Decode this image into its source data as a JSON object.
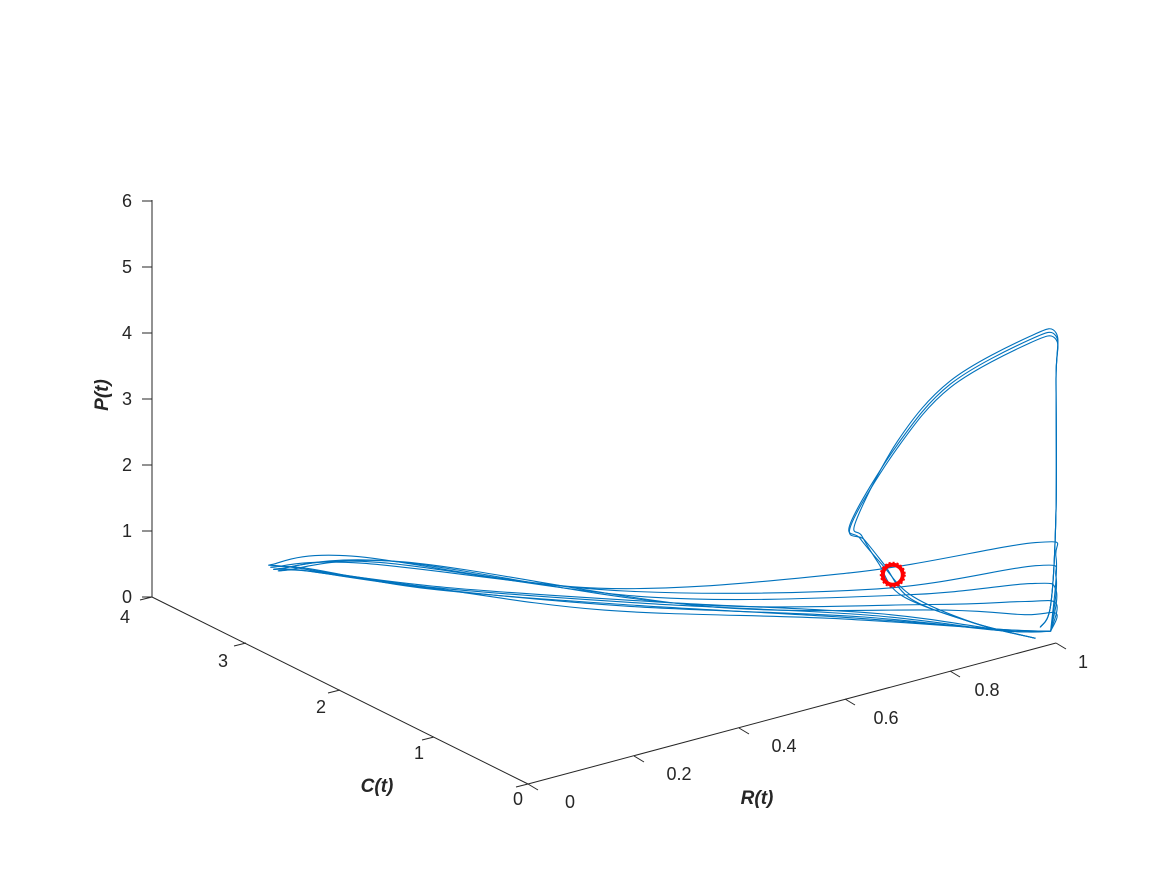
{
  "chart_data": {
    "type": "line",
    "dimension": "3d",
    "title": "",
    "xlabel": "R(t)",
    "ylabel": "C(t)",
    "zlabel": "P(t)",
    "xlim": [
      0,
      1
    ],
    "ylim": [
      0,
      4
    ],
    "zlim": [
      0,
      6
    ],
    "xticks": [
      "0",
      "0.2",
      "0.4",
      "0.6",
      "0.8",
      "1"
    ],
    "yticks": [
      "0",
      "1",
      "2",
      "3",
      "4"
    ],
    "zticks": [
      "0",
      "1",
      "2",
      "3",
      "4",
      "5",
      "6"
    ],
    "grid": false,
    "colors": {
      "trajectory": "#0072BD",
      "marker": "#FF0000"
    },
    "marker": {
      "shape": "circle",
      "R": 0.78,
      "C": 0.5,
      "P": 1.15
    },
    "series": [
      {
        "description_free": true,
        "loops": [
          [
            [
              0.97,
              0.0,
              0.3
            ],
            [
              0.99,
              0.0,
              0.6
            ],
            [
              1.0,
              0.0,
              2.0
            ],
            [
              1.0,
              0.0,
              4.0
            ],
            [
              1.0,
              0.0,
              4.7
            ],
            [
              0.95,
              0.0,
              4.75
            ],
            [
              0.8,
              0.0,
              4.4
            ],
            [
              0.7,
              0.0,
              3.7
            ],
            [
              0.63,
              0.05,
              2.6
            ],
            [
              0.65,
              0.1,
              2.3
            ],
            [
              0.7,
              0.2,
              1.7
            ],
            [
              0.78,
              0.4,
              0.9
            ],
            [
              0.9,
              0.3,
              0.3
            ],
            [
              0.97,
              0.05,
              0.1
            ]
          ],
          [
            [
              0.97,
              0.0,
              0.3
            ],
            [
              0.99,
              0.0,
              0.6
            ],
            [
              1.0,
              0.0,
              2.0
            ],
            [
              1.0,
              0.0,
              4.0
            ],
            [
              1.0,
              0.0,
              4.65
            ],
            [
              0.95,
              0.0,
              4.7
            ],
            [
              0.8,
              0.0,
              4.35
            ],
            [
              0.7,
              0.0,
              3.65
            ],
            [
              0.62,
              0.05,
              2.6
            ],
            [
              0.65,
              0.12,
              2.25
            ],
            [
              0.71,
              0.22,
              1.65
            ],
            [
              0.8,
              0.4,
              0.85
            ],
            [
              0.9,
              0.3,
              0.3
            ],
            [
              0.97,
              0.05,
              0.1
            ]
          ],
          [
            [
              0.97,
              0.0,
              0.3
            ],
            [
              0.99,
              0.0,
              0.6
            ],
            [
              1.0,
              0.0,
              2.0
            ],
            [
              1.0,
              0.0,
              4.0
            ],
            [
              1.0,
              0.0,
              4.6
            ],
            [
              0.95,
              0.0,
              4.65
            ],
            [
              0.8,
              0.0,
              4.3
            ],
            [
              0.7,
              0.0,
              3.6
            ],
            [
              0.62,
              0.05,
              2.55
            ],
            [
              0.66,
              0.13,
              2.2
            ],
            [
              0.72,
              0.25,
              1.6
            ],
            [
              0.8,
              0.42,
              0.8
            ],
            [
              0.9,
              0.3,
              0.3
            ],
            [
              0.97,
              0.05,
              0.1
            ]
          ],
          [
            [
              0.99,
              0.0,
              0.2
            ],
            [
              1.0,
              0.0,
              1.3
            ],
            [
              0.97,
              0.05,
              1.55
            ],
            [
              0.7,
              0.5,
              1.35
            ],
            [
              0.4,
              1.5,
              1.05
            ],
            [
              0.2,
              3.0,
              0.9
            ],
            [
              0.14,
              3.5,
              0.55
            ],
            [
              0.2,
              3.6,
              0.3
            ],
            [
              0.35,
              3.0,
              0.1
            ],
            [
              0.5,
              2.0,
              0.15
            ],
            [
              0.75,
              1.0,
              0.2
            ],
            [
              0.95,
              0.3,
              0.1
            ],
            [
              0.99,
              0.0,
              0.2
            ]
          ],
          [
            [
              0.99,
              0.0,
              0.2
            ],
            [
              1.0,
              0.0,
              1.0
            ],
            [
              0.97,
              0.05,
              1.2
            ],
            [
              0.75,
              0.5,
              1.0
            ],
            [
              0.45,
              1.5,
              0.9
            ],
            [
              0.22,
              3.0,
              0.75
            ],
            [
              0.15,
              3.55,
              0.45
            ],
            [
              0.22,
              3.6,
              0.25
            ],
            [
              0.35,
              3.0,
              0.08
            ],
            [
              0.55,
              2.0,
              0.12
            ],
            [
              0.78,
              1.0,
              0.15
            ],
            [
              0.95,
              0.3,
              0.1
            ],
            [
              0.99,
              0.0,
              0.2
            ]
          ],
          [
            [
              0.99,
              0.0,
              0.2
            ],
            [
              1.0,
              0.0,
              0.8
            ],
            [
              0.96,
              0.05,
              0.95
            ],
            [
              0.8,
              0.5,
              0.8
            ],
            [
              0.5,
              1.5,
              0.7
            ],
            [
              0.25,
              3.0,
              0.7
            ],
            [
              0.16,
              3.55,
              0.4
            ],
            [
              0.22,
              3.62,
              0.2
            ],
            [
              0.36,
              3.0,
              0.06
            ],
            [
              0.55,
              2.0,
              0.1
            ],
            [
              0.8,
              1.0,
              0.12
            ],
            [
              0.95,
              0.3,
              0.08
            ],
            [
              0.99,
              0.0,
              0.2
            ]
          ],
          [
            [
              0.99,
              0.0,
              0.2
            ],
            [
              1.0,
              0.0,
              0.6
            ],
            [
              0.95,
              0.05,
              0.7
            ],
            [
              0.85,
              0.5,
              0.55
            ],
            [
              0.55,
              1.5,
              0.5
            ],
            [
              0.28,
              3.0,
              0.65
            ],
            [
              0.17,
              3.6,
              0.35
            ],
            [
              0.23,
              3.65,
              0.15
            ],
            [
              0.37,
              3.0,
              0.05
            ],
            [
              0.58,
              2.0,
              0.08
            ],
            [
              0.82,
              1.0,
              0.1
            ],
            [
              0.95,
              0.3,
              0.08
            ],
            [
              0.99,
              0.0,
              0.2
            ]
          ],
          [
            [
              0.99,
              0.0,
              0.2
            ],
            [
              1.0,
              0.0,
              0.45
            ],
            [
              0.95,
              0.05,
              0.5
            ],
            [
              0.88,
              0.5,
              0.4
            ],
            [
              0.6,
              1.5,
              0.35
            ],
            [
              0.3,
              3.0,
              0.6
            ],
            [
              0.18,
              3.6,
              0.3
            ],
            [
              0.24,
              3.66,
              0.12
            ],
            [
              0.38,
              3.0,
              0.04
            ],
            [
              0.6,
              2.0,
              0.06
            ],
            [
              0.84,
              1.0,
              0.08
            ],
            [
              0.96,
              0.3,
              0.06
            ],
            [
              0.99,
              0.0,
              0.2
            ]
          ]
        ]
      }
    ]
  }
}
